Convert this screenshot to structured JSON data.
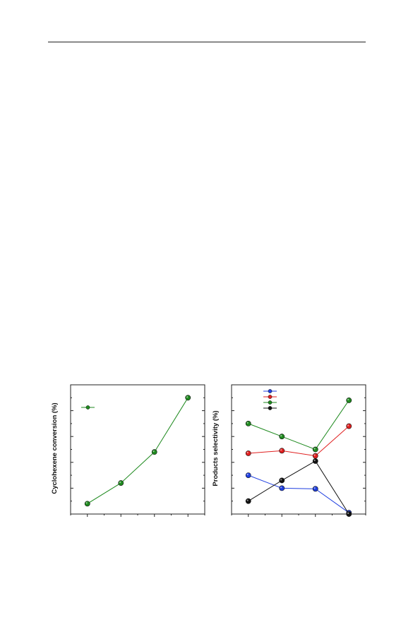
{
  "page": {
    "header_rule": true
  },
  "chart_data": [
    {
      "type": "line",
      "ylabel": "Cyclohexene conversion (%)",
      "xlabel": "",
      "x": [
        1,
        2,
        3,
        4
      ],
      "xlim": [
        0.5,
        4.5
      ],
      "ylim": [
        0,
        100
      ],
      "legend_position": "top-left",
      "series": [
        {
          "color": "#1f8a1f",
          "values": [
            8,
            24,
            48,
            90
          ]
        }
      ]
    },
    {
      "type": "line",
      "ylabel": "Products selectivity (%)",
      "xlabel": "",
      "x": [
        1,
        2,
        3,
        4
      ],
      "xlim": [
        0.5,
        4.5
      ],
      "ylim": [
        0,
        100
      ],
      "legend_position": "top-left",
      "series": [
        {
          "color": "#1f3fe0",
          "values": [
            30,
            20,
            19.5,
            1
          ]
        },
        {
          "color": "#e01f1f",
          "values": [
            47,
            49,
            45,
            68
          ]
        },
        {
          "color": "#1f8a1f",
          "values": [
            70,
            60,
            50,
            88
          ]
        },
        {
          "color": "#111111",
          "values": [
            10,
            26,
            41,
            0
          ]
        }
      ]
    }
  ]
}
